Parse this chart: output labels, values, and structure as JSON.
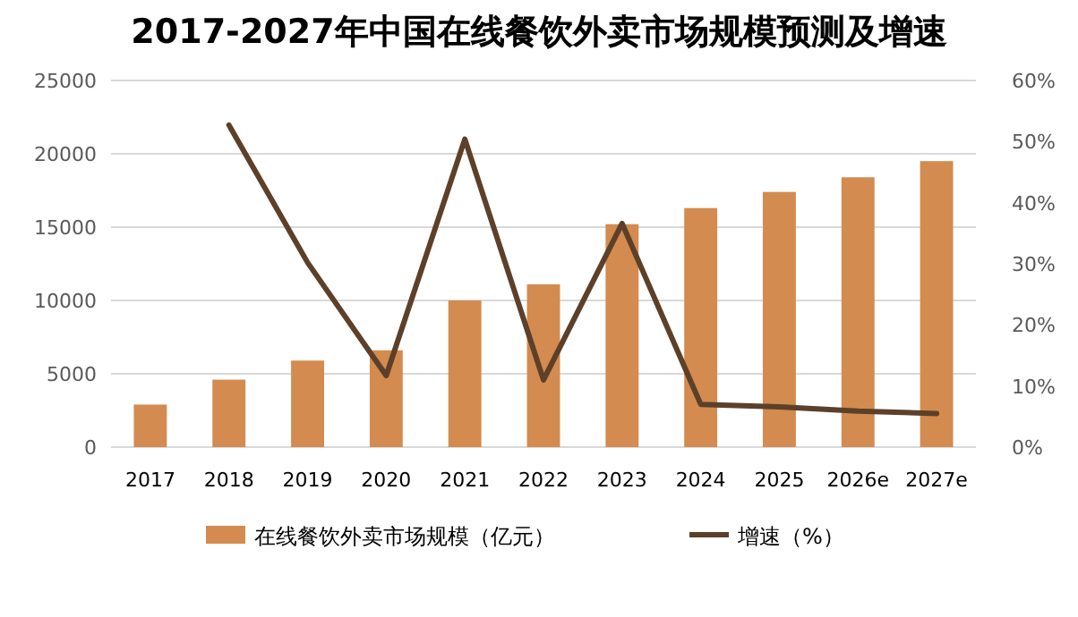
{
  "chart_data": {
    "type": "bar",
    "title": "2017-2027年中国在线餐饮外卖市场规模预测及增速",
    "categories": [
      "2017",
      "2018",
      "2019",
      "2020",
      "2021",
      "2022",
      "2023",
      "2024",
      "2025",
      "2026e",
      "2027e"
    ],
    "series": [
      {
        "name": "在线餐饮外卖市场规模（亿元）",
        "color": "#d38b4f",
        "values": [
          2900,
          4600,
          5900,
          6600,
          10000,
          11100,
          15200,
          16300,
          17400,
          18400,
          19500
        ]
      },
      {
        "name": "增速（%）",
        "type": "line",
        "axis": "y2",
        "color": "#5c4029",
        "values": [
          null,
          52.7,
          30.2,
          11.7,
          50.4,
          11.0,
          36.6,
          7.0,
          6.6,
          5.9,
          5.5
        ]
      }
    ],
    "ylim": [
      0,
      25000
    ],
    "yticks": [
      0,
      5000,
      10000,
      15000,
      20000,
      25000
    ],
    "y2lim": [
      0,
      60
    ],
    "y2ticks": [
      {
        "value": 0,
        "label": "0%"
      },
      {
        "value": 10,
        "label": "10%"
      },
      {
        "value": 20,
        "label": "20%"
      },
      {
        "value": 30,
        "label": "30%"
      },
      {
        "value": 40,
        "label": "40%"
      },
      {
        "value": 50,
        "label": "50%"
      },
      {
        "value": 60,
        "label": "60%"
      }
    ],
    "grid": "y",
    "legend": "bottom"
  }
}
